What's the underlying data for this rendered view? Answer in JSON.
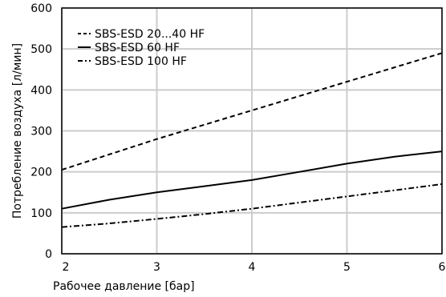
{
  "chart_data": {
    "type": "line",
    "xlabel": "Рабочее давление [бар]",
    "ylabel": "Потребление воздуха [л/мин]",
    "xlim": [
      2,
      6
    ],
    "ylim": [
      0,
      600
    ],
    "x_ticks": [
      "2",
      "3",
      "4",
      "5",
      "6"
    ],
    "y_ticks": [
      "0",
      "100",
      "200",
      "300",
      "400",
      "500",
      "600"
    ],
    "grid": true,
    "legend_position": "top-left",
    "series": [
      {
        "name": "SBS-ESD 20...40 HF",
        "style": "dashed",
        "x": [
          2,
          3,
          4,
          5,
          6
        ],
        "y": [
          205,
          280,
          350,
          420,
          490
        ]
      },
      {
        "name": "SBS-ESD 60 HF",
        "style": "solid",
        "x": [
          2,
          2.5,
          3,
          3.5,
          4,
          4.5,
          5,
          5.5,
          6
        ],
        "y": [
          110,
          132,
          150,
          165,
          180,
          200,
          220,
          237,
          250
        ]
      },
      {
        "name": "SBS-ESD 100 HF",
        "style": "dash-dot",
        "x": [
          2,
          2.5,
          3,
          3.5,
          4,
          4.5,
          5,
          5.5,
          6
        ],
        "y": [
          65,
          74,
          85,
          97,
          110,
          125,
          140,
          155,
          170
        ]
      }
    ],
    "colors": {
      "line": "#000000",
      "grid": "#cccccc",
      "frame": "#000000"
    }
  }
}
